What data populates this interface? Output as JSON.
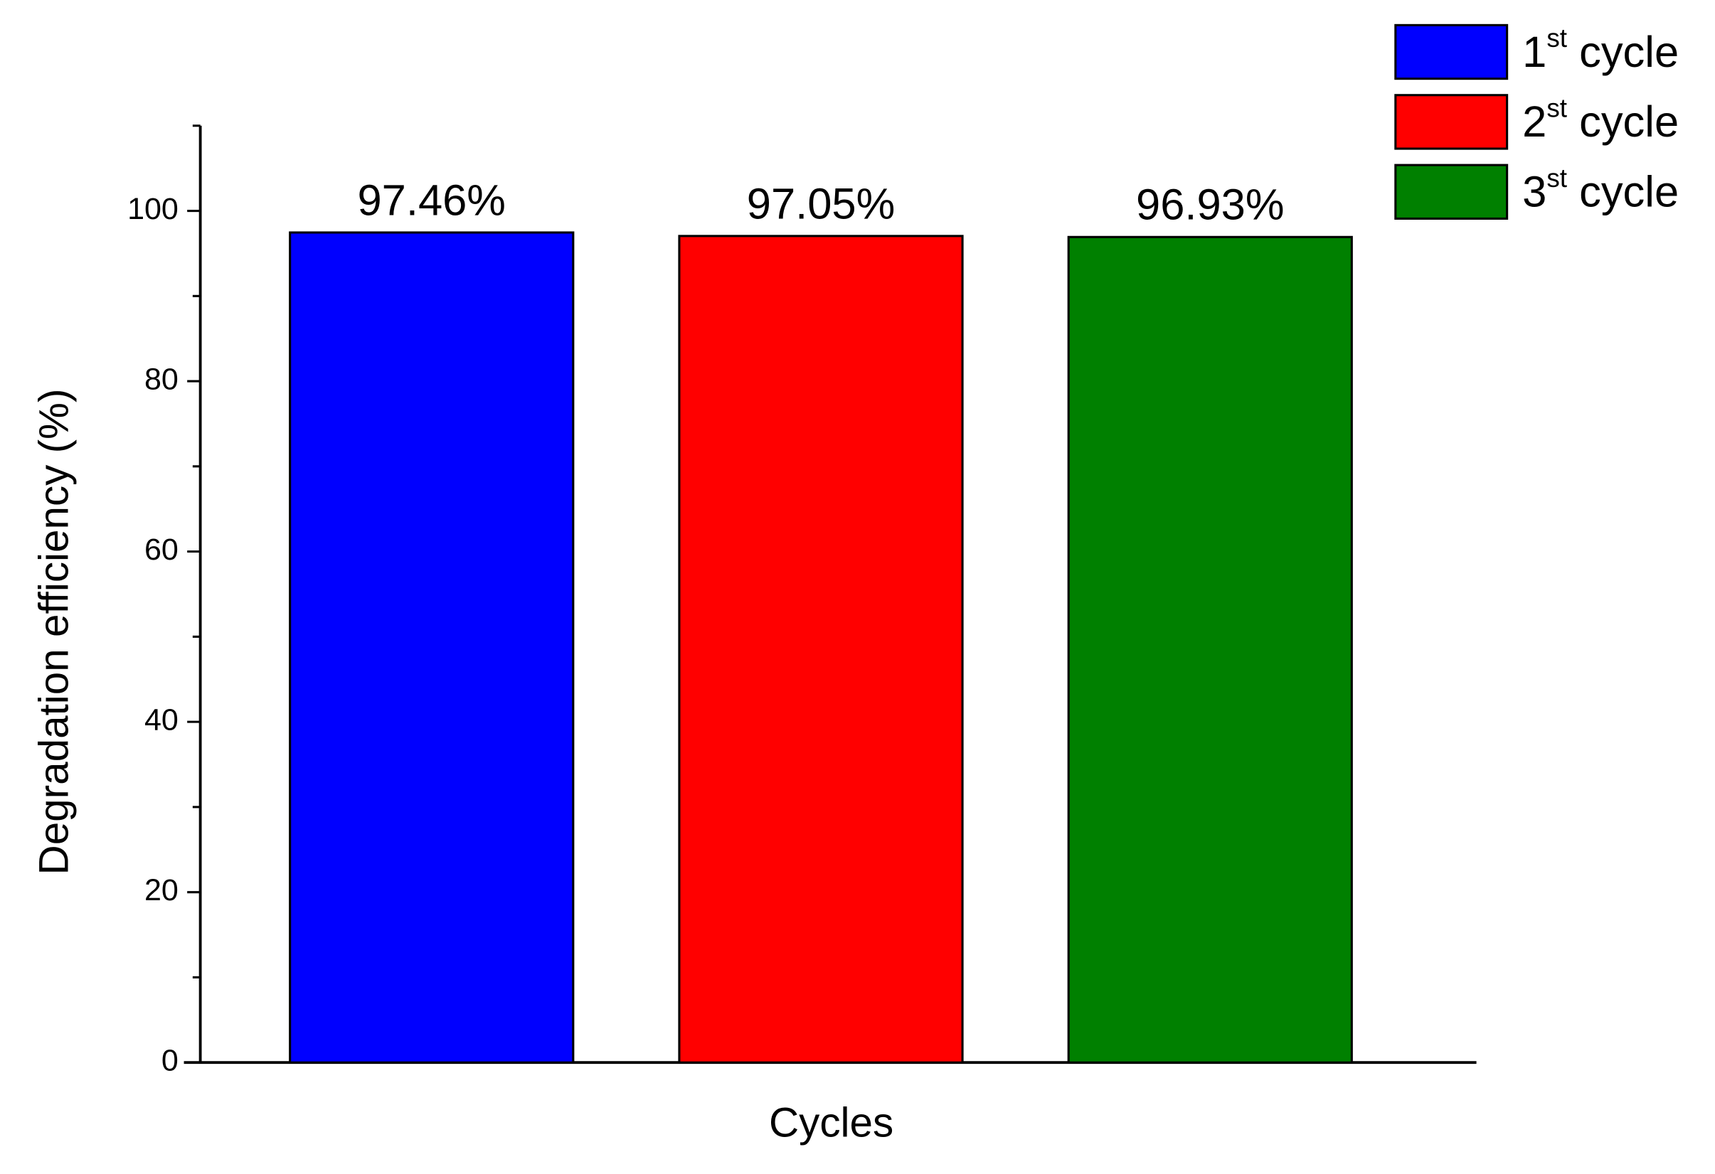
{
  "chart_data": {
    "type": "bar",
    "xlabel": "Cycles",
    "ylabel": "Degradation efficiency (%)",
    "categories": [
      null
    ],
    "series": [
      {
        "name": "1st cycle",
        "color": "#0000ff",
        "values": [
          97.46
        ],
        "value_labels": [
          "97.46%"
        ]
      },
      {
        "name": "2st cycle",
        "color": "#ff0000",
        "values": [
          97.05
        ],
        "value_labels": [
          "97.05%"
        ]
      },
      {
        "name": "3st cycle",
        "color": "#008000",
        "values": [
          96.93
        ],
        "value_labels": [
          "96.93%"
        ]
      }
    ],
    "ylim": [
      0,
      110
    ],
    "yticks": [
      0,
      20,
      40,
      60,
      80,
      100
    ],
    "grid": false,
    "legend": "top-right"
  }
}
